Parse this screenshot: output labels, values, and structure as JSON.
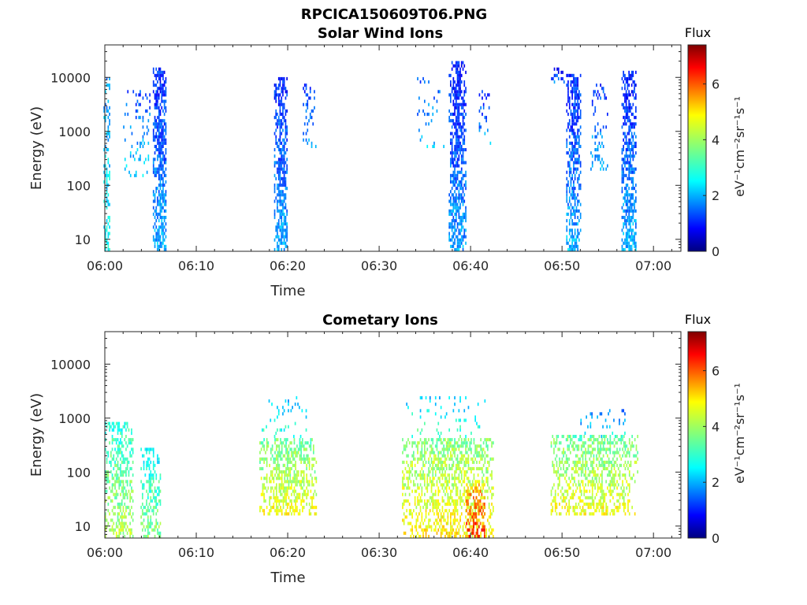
{
  "figure": {
    "suptitle": "RPCICA150609T06.PNG"
  },
  "chart_data": [
    {
      "type": "heatmap",
      "title": "Solar Wind Ions",
      "xlabel": "Time",
      "ylabel": "Energy (eV)",
      "x_ticks": [
        "06:00",
        "06:10",
        "06:20",
        "06:30",
        "06:40",
        "06:50",
        "07:00"
      ],
      "xlim_min": [
        0,
        63
      ],
      "y_ticks": [
        "10",
        "100",
        "1000",
        "10000"
      ],
      "ylim_eV": [
        6,
        40000
      ],
      "y_scale": "log",
      "colorbar": {
        "title": "Flux",
        "label": "eV⁻¹cm⁻²sr⁻¹s⁻¹",
        "ticks": [
          "0",
          "2",
          "4",
          "6"
        ],
        "range": [
          0,
          7.4
        ],
        "colormap": "jet"
      },
      "bursts": [
        {
          "t": 0.2,
          "w": 0.7,
          "emin": 6,
          "emax": 10000,
          "flux": 2.2,
          "density": 0.45
        },
        {
          "t": 3.5,
          "w": 3.0,
          "emin": 150,
          "emax": 6000,
          "flux": 1.7,
          "density": 0.15
        },
        {
          "t": 6.0,
          "w": 1.5,
          "emin": 6,
          "emax": 15000,
          "flux": 1.4,
          "density": 0.75
        },
        {
          "t": 19.2,
          "w": 1.4,
          "emin": 6,
          "emax": 10000,
          "flux": 1.4,
          "density": 0.75
        },
        {
          "t": 22.3,
          "w": 1.6,
          "emin": 500,
          "emax": 8000,
          "flux": 1.4,
          "density": 0.2
        },
        {
          "t": 35.5,
          "w": 3.0,
          "emin": 500,
          "emax": 12000,
          "flux": 1.6,
          "density": 0.12
        },
        {
          "t": 38.5,
          "w": 1.8,
          "emin": 6,
          "emax": 20000,
          "flux": 1.3,
          "density": 0.8
        },
        {
          "t": 41.5,
          "w": 1.2,
          "emin": 500,
          "emax": 6000,
          "flux": 1.4,
          "density": 0.2
        },
        {
          "t": 49.5,
          "w": 1.4,
          "emin": 8000,
          "emax": 15000,
          "flux": 1.0,
          "density": 0.3
        },
        {
          "t": 51.2,
          "w": 1.5,
          "emin": 6,
          "emax": 12000,
          "flux": 1.4,
          "density": 0.75
        },
        {
          "t": 54.0,
          "w": 1.8,
          "emin": 200,
          "emax": 8000,
          "flux": 1.5,
          "density": 0.2
        },
        {
          "t": 57.3,
          "w": 1.6,
          "emin": 6,
          "emax": 13000,
          "flux": 1.4,
          "density": 0.75
        }
      ]
    },
    {
      "type": "heatmap",
      "title": "Cometary Ions",
      "xlabel": "Time",
      "ylabel": "Energy (eV)",
      "x_ticks": [
        "06:00",
        "06:10",
        "06:20",
        "06:30",
        "06:40",
        "06:50",
        "07:00"
      ],
      "xlim_min": [
        0,
        63
      ],
      "y_ticks": [
        "10",
        "100",
        "1000",
        "10000"
      ],
      "ylim_eV": [
        6,
        40000
      ],
      "y_scale": "log",
      "colorbar": {
        "title": "Flux",
        "label": "eV⁻¹cm⁻²sr⁻¹s⁻¹",
        "ticks": [
          "0",
          "2",
          "4",
          "6"
        ],
        "range": [
          0,
          7.4
        ],
        "colormap": "jet"
      },
      "bursts": [
        {
          "t": 1.5,
          "w": 3.0,
          "emin": 6,
          "emax": 800,
          "flux": 3.3,
          "density": 0.55
        },
        {
          "t": 5.0,
          "w": 2.2,
          "emin": 6,
          "emax": 300,
          "flux": 3.0,
          "density": 0.55
        },
        {
          "t": 20.0,
          "w": 6.2,
          "emin": 15,
          "emax": 400,
          "flux": 3.8,
          "density": 0.6
        },
        {
          "t": 19.5,
          "w": 5.0,
          "emin": 400,
          "emax": 2500,
          "flux": 2.5,
          "density": 0.12
        },
        {
          "t": 37.5,
          "w": 10.0,
          "emin": 6,
          "emax": 400,
          "flux": 4.0,
          "density": 0.6
        },
        {
          "t": 37.0,
          "w": 9.0,
          "emin": 400,
          "emax": 2500,
          "flux": 2.6,
          "density": 0.1
        },
        {
          "t": 40.5,
          "w": 2.0,
          "emin": 6,
          "emax": 60,
          "flux": 5.5,
          "density": 0.55
        },
        {
          "t": 53.5,
          "w": 9.5,
          "emin": 15,
          "emax": 500,
          "flux": 3.8,
          "density": 0.55
        },
        {
          "t": 54.5,
          "w": 5.0,
          "emin": 400,
          "emax": 1500,
          "flux": 2.0,
          "density": 0.18
        }
      ]
    }
  ]
}
